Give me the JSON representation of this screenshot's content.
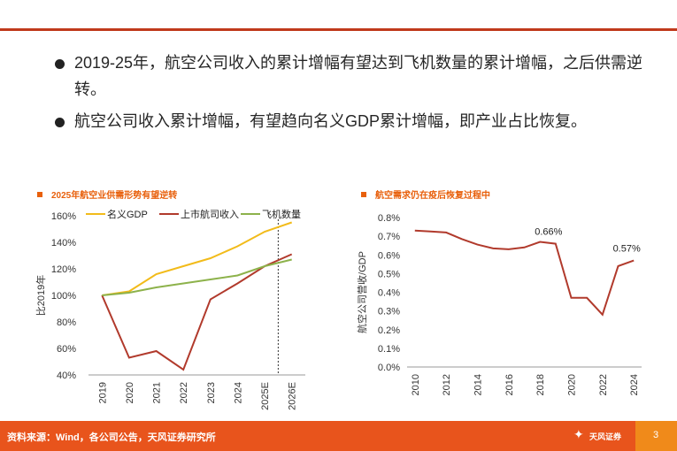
{
  "bullets": [
    "2019-25年，航空公司收入的累计增幅有望达到飞机数量的累计增幅，之后供需逆转。",
    "航空公司收入累计增幅，有望趋向名义GDP累计增幅，即产业占比恢复。"
  ],
  "footer": {
    "source": "资料来源：Wind，各公司公告，天风证券研究所",
    "logo_text": "天风证券",
    "page": "3"
  },
  "colors": {
    "accent": "#e8541c",
    "gdp": "#f2bb1a",
    "revenue": "#b13a2c",
    "fleet": "#8db24b",
    "share": "#b13a2c"
  },
  "chart_data": [
    {
      "type": "line",
      "title": "2025年航空业供需形势有望逆转",
      "ylabel": "比2019年",
      "categories": [
        "2019",
        "2020",
        "2021",
        "2022",
        "2023",
        "2024",
        "2025E",
        "2026E"
      ],
      "ylim": [
        40,
        160
      ],
      "yticks": [
        "40%",
        "60%",
        "80%",
        "100%",
        "120%",
        "140%",
        "160%"
      ],
      "divider_after": "2025E",
      "legend_position": "top",
      "grid": false,
      "series": [
        {
          "name": "名义GDP",
          "values": [
            100,
            103,
            116,
            122,
            128,
            137,
            148,
            155
          ]
        },
        {
          "name": "上市航司收入",
          "values": [
            100,
            53,
            58,
            44,
            97,
            109,
            122,
            131
          ]
        },
        {
          "name": "飞机数量",
          "values": [
            100,
            102,
            106,
            109,
            112,
            115,
            122,
            127
          ]
        }
      ]
    },
    {
      "type": "line",
      "title": "航空需求仍在疫后恢复过程中",
      "ylabel": "航空公司营收/GDP",
      "x": [
        2010,
        2011,
        2012,
        2013,
        2014,
        2015,
        2016,
        2017,
        2018,
        2019,
        2020,
        2021,
        2022,
        2023,
        2024
      ],
      "xticks": [
        "2010",
        "2012",
        "2014",
        "2016",
        "2018",
        "2020",
        "2022",
        "2024"
      ],
      "ylim": [
        0,
        0.8
      ],
      "yticks": [
        "0.0%",
        "0.1%",
        "0.2%",
        "0.3%",
        "0.4%",
        "0.5%",
        "0.6%",
        "0.7%",
        "0.8%"
      ],
      "grid": false,
      "series": [
        {
          "values": [
            0.73,
            0.725,
            0.72,
            0.685,
            0.655,
            0.635,
            0.63,
            0.64,
            0.67,
            0.66,
            0.37,
            0.37,
            0.28,
            0.54,
            0.57
          ]
        }
      ],
      "annotations": [
        {
          "x": 2019,
          "text": "0.66%"
        },
        {
          "x": 2024,
          "text": "0.57%"
        }
      ]
    }
  ]
}
